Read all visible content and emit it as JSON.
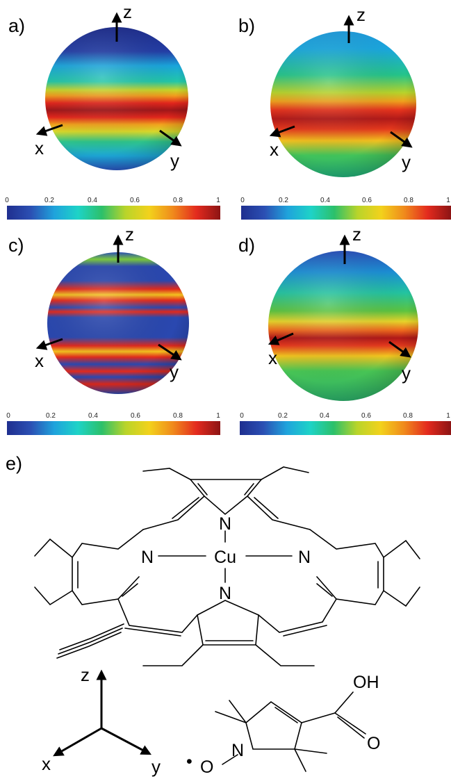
{
  "panels": [
    {
      "id": "a",
      "label": "a)",
      "axes": {
        "z": "z",
        "x": "x",
        "y": "y"
      },
      "colorbar_ticks": [
        "0",
        "0.2",
        "0.4",
        "0.6",
        "0.8",
        "1"
      ],
      "map": "narrow red belt at the equator, blue pole"
    },
    {
      "id": "b",
      "label": "b)",
      "axes": {
        "z": "z",
        "x": "x",
        "y": "y"
      },
      "colorbar_ticks": [
        "0",
        "0.2",
        "0.4",
        "0.6",
        "0.8",
        "1"
      ],
      "map": "broad green sphere with red belt"
    },
    {
      "id": "c",
      "label": "c)",
      "axes": {
        "z": "z",
        "x": "x",
        "y": "y"
      },
      "colorbar_ticks": [
        "0",
        "0.2",
        "0.4",
        "0.6",
        "0.8",
        "1"
      ],
      "map": "multiple red rings"
    },
    {
      "id": "d",
      "label": "d)",
      "axes": {
        "z": "z",
        "x": "x",
        "y": "y"
      },
      "colorbar_ticks": [
        "0",
        "0.2",
        "0.4",
        "0.6",
        "0.8",
        "1"
      ],
      "map": "green sphere with red belt"
    }
  ],
  "colormap": [
    "#1f2f8f",
    "#2b4fb3",
    "#1fa3dc",
    "#1ed3c7",
    "#2cc06a",
    "#b9d42a",
    "#f2d21c",
    "#f08a1c",
    "#e32a1e",
    "#8c1414"
  ],
  "structure": {
    "label": "e)",
    "atoms": {
      "n_top": "N",
      "n_left": "N",
      "n_right": "N",
      "n_bottom": "N",
      "cu": "Cu"
    },
    "frame": {
      "z": "z",
      "x": "x",
      "y": "y"
    },
    "nitroxide": {
      "oh": "OH",
      "o": "O",
      "n": "N",
      "o_radical": "O",
      "radical_dot": "•"
    }
  }
}
